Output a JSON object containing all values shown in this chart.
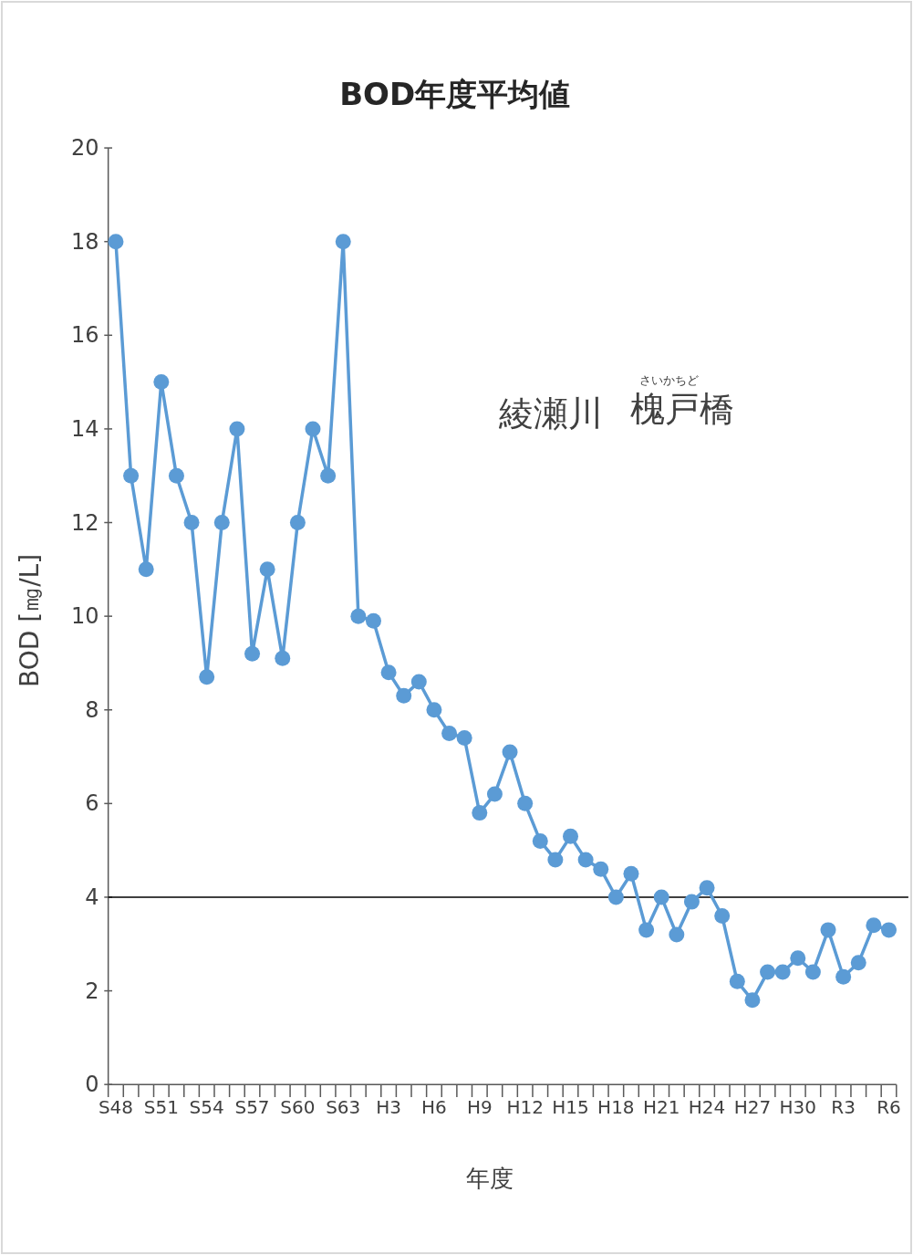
{
  "chart_data": {
    "type": "line",
    "title": "BOD年度平均値",
    "xlabel": "年度",
    "ylabel": "BOD [㎎/L]",
    "annotations": [
      "綾瀬川",
      "さいかちど",
      "槐戸橋"
    ],
    "categories": [
      "S48",
      null,
      null,
      "S51",
      null,
      null,
      "S54",
      null,
      null,
      "S57",
      null,
      null,
      "S60",
      null,
      null,
      "S63",
      null,
      null,
      "H3",
      null,
      null,
      "H6",
      null,
      null,
      "H9",
      null,
      null,
      "H12",
      null,
      null,
      "H15",
      null,
      null,
      "H18",
      null,
      null,
      "H21",
      null,
      null,
      "H24",
      null,
      null,
      "H27",
      null,
      null,
      "H30",
      null,
      null,
      "R3",
      null,
      null,
      "R6"
    ],
    "series": [
      {
        "color": "#5b9bd5",
        "values": [
          18,
          13,
          11,
          15,
          13,
          12,
          8.7,
          12,
          14,
          9.2,
          11,
          9.1,
          12,
          14,
          13,
          18,
          10.0,
          9.9,
          8.8,
          8.3,
          8.6,
          8.0,
          7.5,
          7.4,
          5.8,
          6.2,
          7.1,
          6.0,
          5.2,
          4.8,
          5.3,
          4.8,
          4.6,
          4.0,
          4.5,
          3.3,
          4.0,
          3.2,
          3.9,
          4.2,
          3.6,
          2.2,
          1.8,
          2.4,
          2.4,
          2.7,
          2.4,
          3.3,
          2.3,
          2.6,
          3.4,
          3.3
        ]
      }
    ],
    "ylim": [
      0,
      20
    ],
    "yticks": [
      0,
      2,
      4,
      6,
      8,
      10,
      12,
      14,
      16,
      18,
      20
    ],
    "ref_lines": [
      {
        "axis": "y",
        "value": 4,
        "color": "#000000"
      }
    ],
    "marker": "circle",
    "line_style": "solid",
    "grid": false
  }
}
